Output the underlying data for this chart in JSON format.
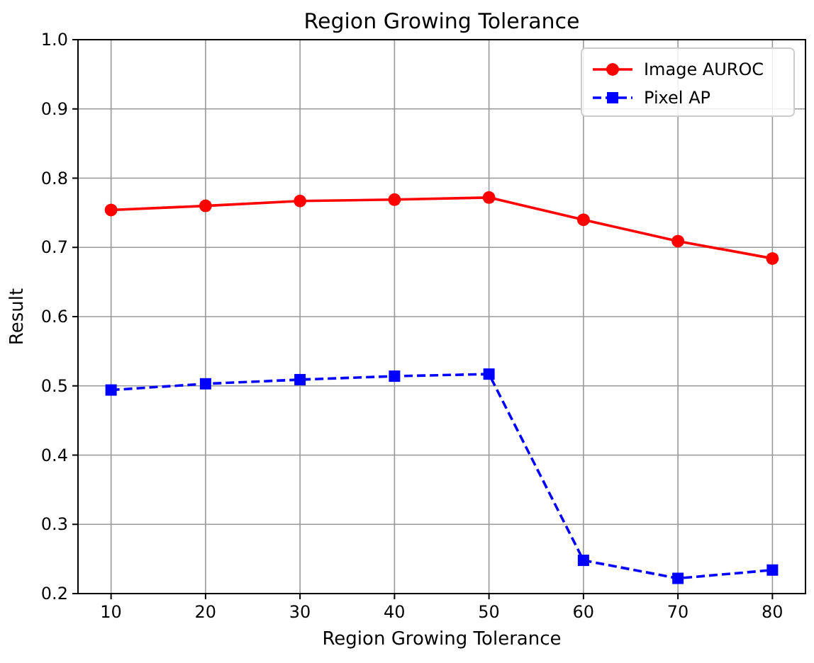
{
  "chart_data": {
    "type": "line",
    "title": "Region Growing Tolerance",
    "xlabel": "Region Growing Tolerance",
    "ylabel": "Result",
    "x": [
      10,
      20,
      30,
      40,
      50,
      60,
      70,
      80
    ],
    "series": [
      {
        "name": "Image AUROC",
        "color": "#ff0000",
        "marker": "circle",
        "line_style": "solid",
        "values": [
          0.754,
          0.76,
          0.767,
          0.769,
          0.772,
          0.74,
          0.709,
          0.684
        ]
      },
      {
        "name": "Pixel AP",
        "color": "#0000ff",
        "marker": "square",
        "line_style": "dashed",
        "values": [
          0.494,
          0.503,
          0.509,
          0.514,
          0.517,
          0.248,
          0.222,
          0.234
        ]
      }
    ],
    "xlim": [
      6.5,
      83.5
    ],
    "xticks": [
      10,
      20,
      30,
      40,
      50,
      60,
      70,
      80
    ],
    "ylim": [
      0.2,
      1.0
    ],
    "yticks": [
      {
        "value": 0.2,
        "label": "0.2"
      },
      {
        "value": 0.3,
        "label": "0.3"
      },
      {
        "value": 0.4,
        "label": "0.4"
      },
      {
        "value": 0.5,
        "label": "0.5"
      },
      {
        "value": 0.6,
        "label": "0.6"
      },
      {
        "value": 0.7,
        "label": "0.7"
      },
      {
        "value": 0.8,
        "label": "0.8"
      },
      {
        "value": 0.9,
        "label": "0.9"
      },
      {
        "value": 1.0,
        "label": "1.0"
      }
    ],
    "grid": true,
    "legend": "top right"
  }
}
